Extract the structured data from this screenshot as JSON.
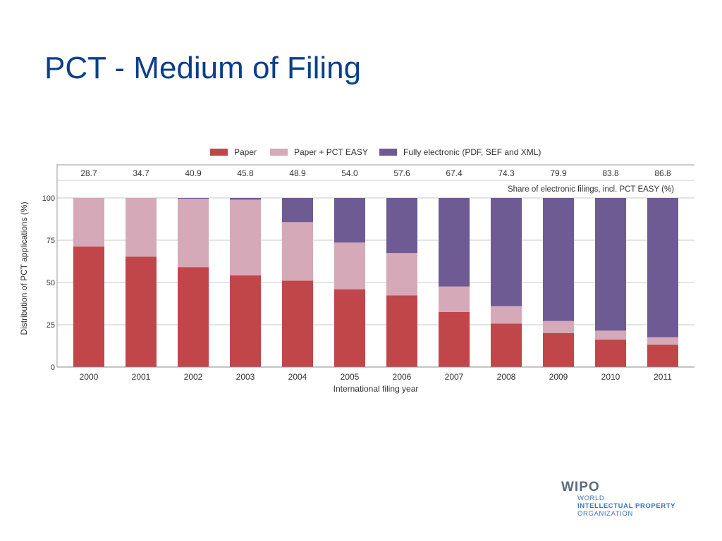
{
  "page": {
    "title": "PCT - Medium of Filing"
  },
  "logo": {
    "mark": "WIPO",
    "line1": "WORLD",
    "line2": "INTELLECTUAL PROPERTY",
    "line3": "ORGANIZATION"
  },
  "chart_data": {
    "type": "bar",
    "stacked": true,
    "title": "",
    "xlabel": "International filing year",
    "ylabel": "Distribution of PCT applications (%)",
    "ylim": [
      0,
      100
    ],
    "yticks": [
      0,
      25,
      50,
      75,
      100
    ],
    "grid": true,
    "legend_position": "top",
    "categories": [
      "2000",
      "2001",
      "2002",
      "2003",
      "2004",
      "2005",
      "2006",
      "2007",
      "2008",
      "2009",
      "2010",
      "2011"
    ],
    "series": [
      {
        "name": "Paper",
        "color": "#c1464a",
        "values": [
          71.3,
          65.3,
          59.1,
          54.2,
          51.1,
          46.0,
          42.4,
          32.6,
          25.7,
          20.1,
          16.2,
          13.2
        ]
      },
      {
        "name": "Paper + PCT EASY",
        "color": "#d5a9b8",
        "values": [
          28.7,
          34.7,
          40.4,
          44.8,
          34.6,
          27.6,
          25.0,
          15.0,
          10.3,
          7.1,
          5.3,
          4.4
        ]
      },
      {
        "name": "Fully electronic (PDF, SEF and XML)",
        "color": "#6e5b93",
        "values": [
          0.0,
          0.0,
          0.5,
          1.0,
          14.3,
          26.4,
          32.6,
          52.4,
          64.0,
          72.8,
          78.5,
          82.4
        ]
      }
    ],
    "annotation": {
      "label": "Share of electronic filings, incl. PCT EASY (%)",
      "values": [
        "28.7",
        "34.7",
        "40.9",
        "45.8",
        "48.9",
        "54.0",
        "57.6",
        "67.4",
        "74.3",
        "79.9",
        "83.8",
        "86.8"
      ]
    }
  }
}
